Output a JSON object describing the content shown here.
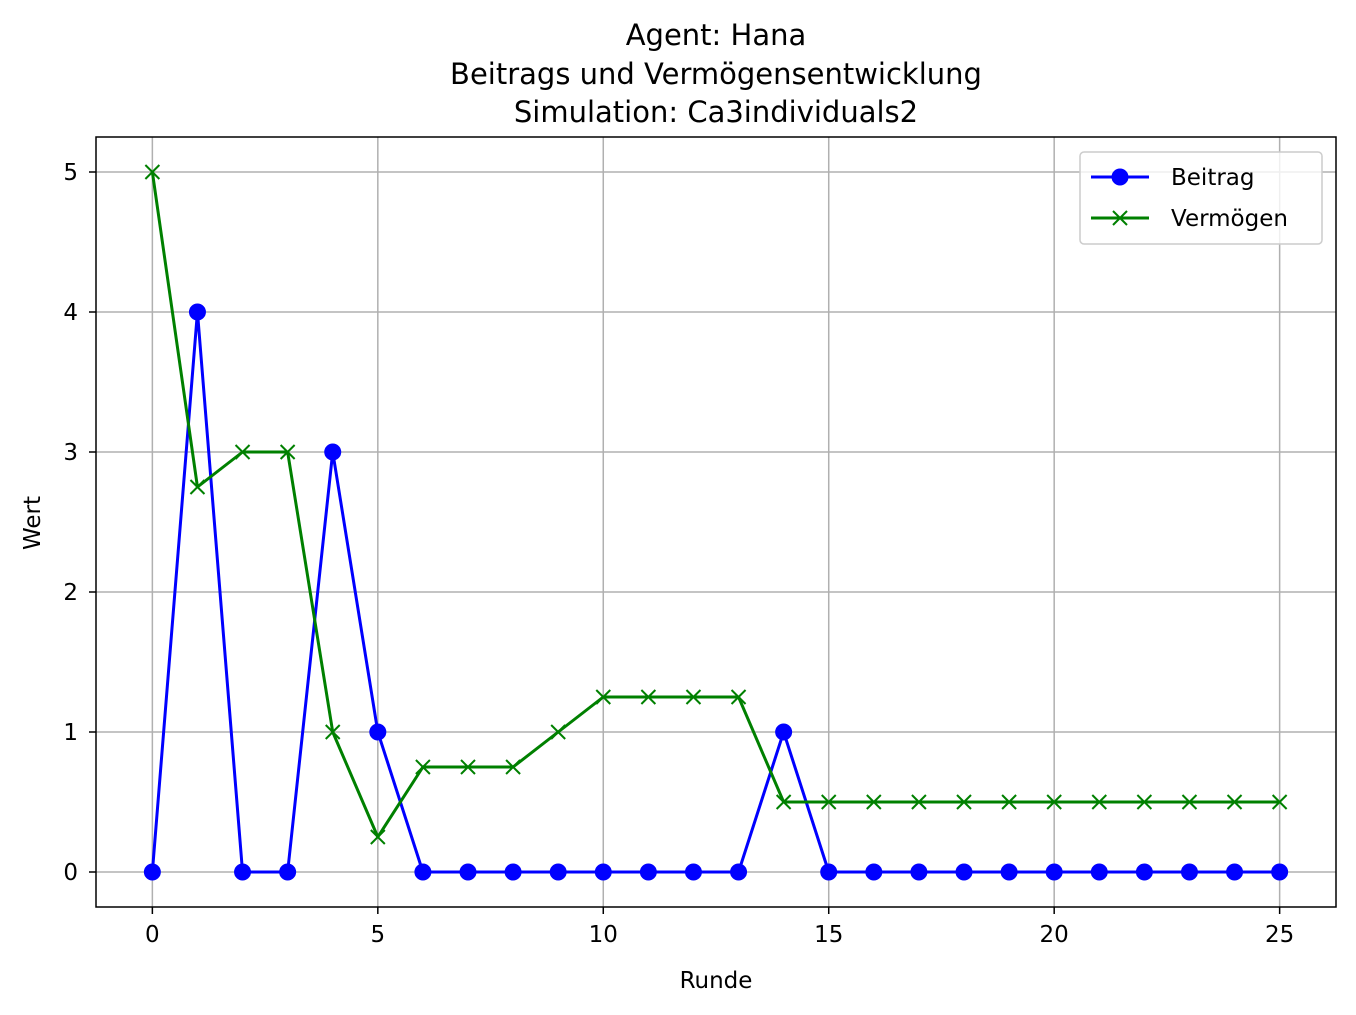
{
  "chart_data": {
    "type": "line",
    "title_lines": [
      "Agent: Hana",
      "Beitrags und Vermögensentwicklung",
      "Simulation: Ca3individuals2"
    ],
    "xlabel": "Runde",
    "ylabel": "Wert",
    "xlim": [
      -1.25,
      26.25
    ],
    "ylim": [
      -0.25,
      5.25
    ],
    "xticks": [
      0,
      5,
      10,
      15,
      20,
      25
    ],
    "yticks": [
      0,
      1,
      2,
      3,
      4,
      5
    ],
    "grid": true,
    "legend_position": "top-right",
    "x": [
      0,
      1,
      2,
      3,
      4,
      5,
      6,
      7,
      8,
      9,
      10,
      11,
      12,
      13,
      14,
      15,
      16,
      17,
      18,
      19,
      20,
      21,
      22,
      23,
      24,
      25
    ],
    "series": [
      {
        "name": "Beitrag",
        "color": "#0000ff",
        "marker": "circle",
        "values": [
          0,
          4,
          0,
          0,
          3,
          1,
          0,
          0,
          0,
          0,
          0,
          0,
          0,
          0,
          1,
          0,
          0,
          0,
          0,
          0,
          0,
          0,
          0,
          0,
          0,
          0
        ]
      },
      {
        "name": "Vermögen",
        "color": "#008000",
        "marker": "x",
        "values": [
          5,
          2.75,
          3,
          3,
          1,
          0.25,
          0.75,
          0.75,
          0.75,
          1,
          1.25,
          1.25,
          1.25,
          1.25,
          0.5,
          0.5,
          0.5,
          0.5,
          0.5,
          0.5,
          0.5,
          0.5,
          0.5,
          0.5,
          0.5,
          0.5
        ]
      }
    ]
  }
}
